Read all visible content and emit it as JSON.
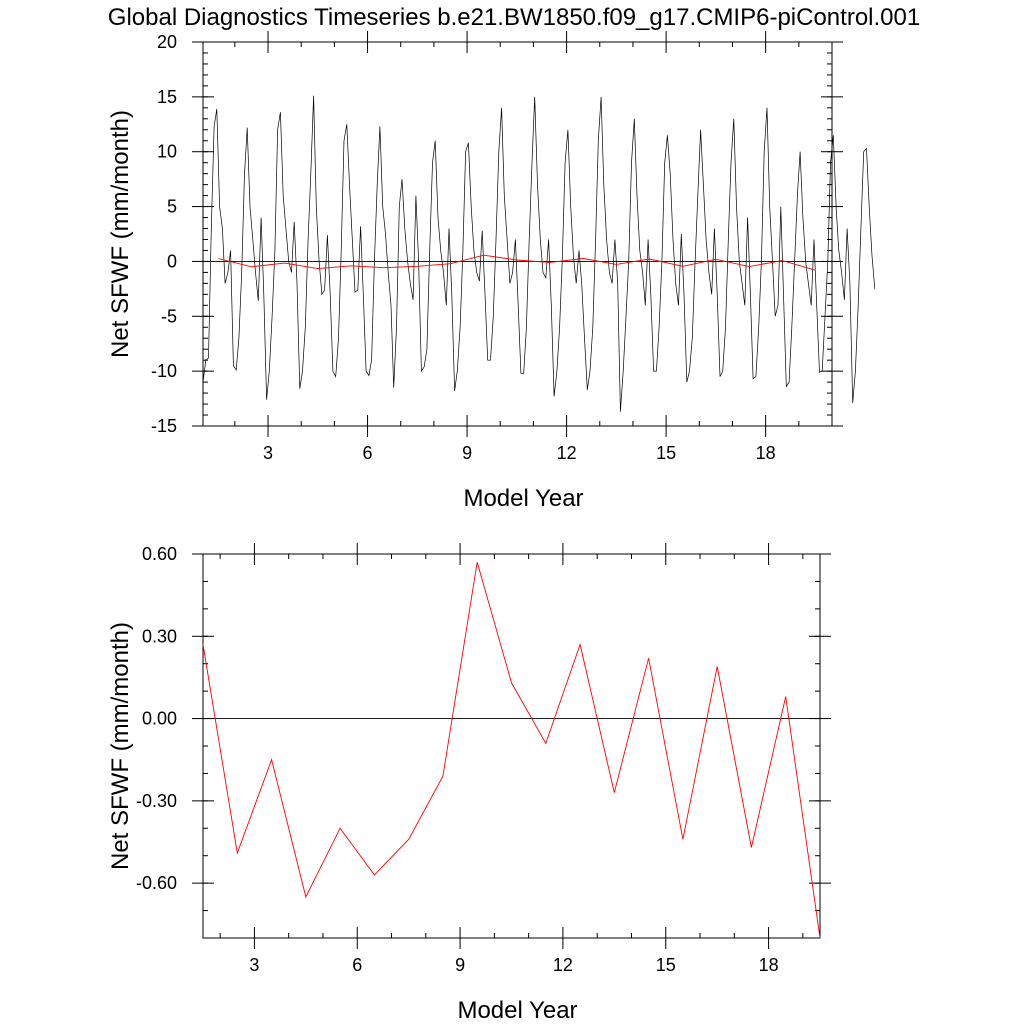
{
  "title": "Global Diagnostics Timeseries b.e21.BW1850.f09_g17.CMIP6-piControl.001",
  "colors": {
    "monthly": "#000000",
    "annual": "#ff0000",
    "zero_line": "#000000"
  },
  "chart_data": [
    {
      "type": "line",
      "xlabel": "Model Year",
      "ylabel": "Net SFWF (mm/month)",
      "xlim": [
        1.04,
        20.0
      ],
      "ylim": [
        -15,
        20
      ],
      "xticks": [
        3,
        6,
        9,
        12,
        15,
        18
      ],
      "xtick_labels": [
        "3",
        "6",
        "9",
        "12",
        "15",
        "18"
      ],
      "yticks": [
        -15,
        -10,
        -5,
        0,
        5,
        10,
        15,
        20
      ],
      "ytick_labels": [
        "-15",
        "-10",
        "-5",
        "0",
        "5",
        "10",
        "15",
        "20"
      ],
      "reference_line": 0,
      "series": [
        {
          "key": "monthly",
          "x_start": 1.04,
          "x_step": 0.08333,
          "values": [
            -11.0,
            -9.0,
            -8.8,
            3.0,
            12.3,
            13.9,
            5.0,
            3.0,
            -2.0,
            -1.0,
            1.0,
            -9.5,
            -9.9,
            -7.0,
            -1.0,
            8.0,
            12.2,
            5.0,
            2.0,
            -1.0,
            -3.6,
            4.0,
            -3.0,
            -12.6,
            -10.0,
            -5.0,
            1.0,
            12.0,
            13.6,
            6.0,
            3.0,
            0.0,
            -1.0,
            3.6,
            -2.0,
            -11.6,
            -10.0,
            -6.0,
            2.0,
            8.0,
            15.1,
            5.0,
            0.0,
            -3.0,
            -2.6,
            2.4,
            -3.0,
            -10.0,
            -10.5,
            -7.0,
            1.0,
            11.0,
            12.5,
            7.0,
            2.0,
            -2.8,
            -2.6,
            3.2,
            -3.0,
            -10.0,
            -10.4,
            -9.0,
            0.0,
            7.0,
            12.3,
            5.0,
            2.5,
            -1.0,
            -4.0,
            -11.5,
            -6.0,
            5.0,
            7.5,
            3.0,
            0.0,
            -2.0,
            -3.5,
            6.0,
            0.0,
            -10.0,
            -9.6,
            -8.0,
            1.0,
            9.0,
            11.0,
            4.0,
            1.0,
            -1.0,
            -4.0,
            3.0,
            -3.0,
            -11.8,
            -10.0,
            -6.0,
            1.0,
            10.0,
            10.8,
            5.0,
            1.0,
            -1.0,
            -1.8,
            2.8,
            -3.0,
            -9.0,
            -9.0,
            -5.0,
            2.0,
            10.0,
            14.0,
            6.0,
            2.0,
            -2.0,
            -1.0,
            2.0,
            -4.0,
            -10.2,
            -10.2,
            -6.0,
            2.0,
            9.0,
            15.0,
            7.0,
            2.0,
            -1.0,
            -1.5,
            2.0,
            -4.0,
            -12.3,
            -10.0,
            -6.0,
            0.5,
            9.0,
            12.0,
            5.0,
            0.5,
            -2.0,
            1.0,
            -2.0,
            -7.0,
            -11.7,
            -10.0,
            -6.0,
            2.0,
            11.0,
            15.0,
            7.0,
            2.0,
            -1.0,
            -2.0,
            2.0,
            -2.0,
            -13.7,
            -10.0,
            -5.0,
            0.0,
            9.0,
            13.0,
            6.0,
            1.0,
            -1.0,
            -4.0,
            2.0,
            -3.0,
            -10.0,
            -10.0,
            -6.0,
            0.0,
            9.0,
            11.5,
            8.0,
            2.0,
            -2.0,
            -4.0,
            2.5,
            -3.0,
            -11.0,
            -10.0,
            -7.0,
            0.0,
            6.0,
            12.0,
            7.0,
            2.0,
            -1.0,
            -3.0,
            3.0,
            -3.0,
            -10.5,
            -10.0,
            -6.0,
            2.0,
            9.0,
            13.0,
            5.0,
            0.0,
            -2.0,
            -4.0,
            4.0,
            -3.0,
            -10.7,
            -10.5,
            -6.0,
            0.0,
            10.0,
            14.0,
            5.0,
            0.0,
            -5.0,
            -4.0,
            5.0,
            -3.0,
            -11.4,
            -11.0,
            -6.0,
            0.0,
            6.0,
            10.0,
            4.0,
            0.0,
            -2.0,
            -4.0,
            2.0,
            -4.0,
            -10.1,
            -10.0,
            -5.0,
            0.0,
            9.0,
            11.5,
            5.0,
            1.0,
            -1.0,
            -3.5,
            3.0,
            -2.0,
            -12.9,
            -10.0,
            -4.0,
            3.0,
            10.0,
            10.3,
            5.0,
            0.5,
            -2.5
          ]
        },
        {
          "key": "annual",
          "x": [
            1.5,
            2.5,
            3.5,
            4.5,
            5.5,
            6.5,
            7.5,
            8.5,
            9.5,
            10.5,
            11.5,
            12.5,
            13.5,
            14.5,
            15.5,
            16.5,
            17.5,
            18.5,
            19.5
          ],
          "values": [
            0.27,
            -0.49,
            -0.15,
            -0.65,
            -0.4,
            -0.57,
            -0.44,
            -0.21,
            0.57,
            0.13,
            -0.09,
            0.27,
            -0.27,
            0.22,
            -0.44,
            0.19,
            -0.47,
            0.08,
            -0.8
          ]
        }
      ]
    },
    {
      "type": "line",
      "xlabel": "Model Year",
      "ylabel": "Net SFWF (mm/month)",
      "xlim": [
        1.5,
        19.5
      ],
      "ylim": [
        -0.8,
        0.6
      ],
      "xticks": [
        3,
        6,
        9,
        12,
        15,
        18
      ],
      "xtick_labels": [
        "3",
        "6",
        "9",
        "12",
        "15",
        "18"
      ],
      "yticks": [
        -0.6,
        -0.3,
        0.0,
        0.3,
        0.6
      ],
      "ytick_labels": [
        "-0.60",
        "-0.30",
        "0.00",
        "0.30",
        "0.60"
      ],
      "reference_line": 0,
      "series": [
        {
          "key": "annual",
          "x": [
            1.5,
            2.5,
            3.5,
            4.5,
            5.5,
            6.5,
            7.5,
            8.5,
            9.5,
            10.5,
            11.5,
            12.5,
            13.5,
            14.5,
            15.5,
            16.5,
            17.5,
            18.5,
            19.5
          ],
          "values": [
            0.27,
            -0.49,
            -0.15,
            -0.65,
            -0.4,
            -0.57,
            -0.44,
            -0.21,
            0.57,
            0.13,
            -0.09,
            0.27,
            -0.27,
            0.22,
            -0.44,
            0.19,
            -0.47,
            0.08,
            -0.8
          ]
        }
      ]
    }
  ]
}
